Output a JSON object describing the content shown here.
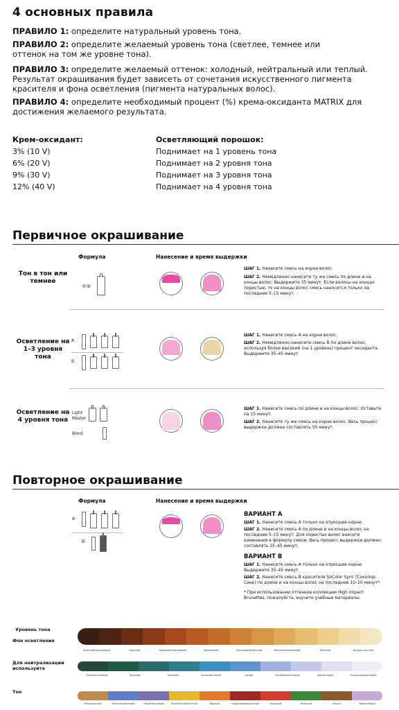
{
  "title": "4 основных правила",
  "rules": [
    {
      "label": "ПРАВИЛО 1:",
      "text": " определите натуральный уровень тона."
    },
    {
      "label": "ПРАВИЛО 2:",
      "text": " определите желаемый уровень тона (светлее, темнее или оттенок на том же уровне тона)."
    },
    {
      "label": "ПРАВИЛО 3:",
      "text": " определите желаемый оттенок: холодный, нейтральный или теплый. Результат окрашивания будет зависеть от сочетания искусственного пигмента красителя и фона осветления (пигмента натуральных волос)."
    },
    {
      "label": "ПРАВИЛО 4:",
      "text": " определите необходимый процент (%) крема-оксиданта MATRIX для достижения желаемого результата."
    }
  ],
  "oxidant": {
    "col1_head": "Крем-оксидант:",
    "col2_head": "Осветляющий порошок:",
    "rows": [
      {
        "a": "3% (10 V)",
        "b": "Поднимает на 1 уровень тона"
      },
      {
        "a": "6% (20 V)",
        "b": "Поднимает на 2 уровня тона"
      },
      {
        "a": "9% (30 V)",
        "b": "Поднимает на 3 уровня тона"
      },
      {
        "a": "12% (40 V)",
        "b": "Поднимает на 4 уровня тона"
      }
    ]
  },
  "primary": {
    "title": "Первичное окрашивание",
    "col_formula": "Формула",
    "col_apply": "Нанесение и время выдержки",
    "rows": [
      {
        "label": "Тон в тон или темнее",
        "steps": [
          {
            "b": "ШАГ 1.",
            "t": " Нанесите смесь на корни волос."
          },
          {
            "b": "ШАГ 2.",
            "t": " Немедленно нанесите ту же смесь по длине и на концы волос. Выдержите 35 минут. Если волосы на концах пористые, то на концы волос смесь наносится только на последние 5–15 минут."
          }
        ]
      },
      {
        "label": "Осветление на 1–3 уровня тона",
        "steps": [
          {
            "b": "ШАГ 1.",
            "t": " Нанесите смесь А на корни волос."
          },
          {
            "b": "ШАГ 2.",
            "t": " Немедленно нанесите смесь В по длине волос, используя более высокий (на 1 уровень) процент оксиданта. Выдержите 35–45 минут."
          }
        ]
      },
      {
        "label": "Осветление на 4 уровня тона",
        "steps": [
          {
            "b": "ШАГ 1.",
            "t": " Нанесите смесь по длине и на концы волос. Оставьте на 15 минут."
          },
          {
            "b": "ШАГ 2.",
            "t": " Нанесите ту же смесь на корни волос. Весь процесс выдержки должен составлять 50 минут."
          }
        ]
      }
    ]
  },
  "repeat": {
    "title": "Повторное окрашивание",
    "col_formula": "Формула",
    "col_apply": "Нанесение и время выдержки",
    "variant_a": "ВАРИАНТ А",
    "steps_a": [
      {
        "b": "ШАГ 1.",
        "t": " Нанесите смесь А только на отросшие корни."
      },
      {
        "b": "ШАГ 2.",
        "t": " Нанесите смесь А по длине и на концы волос на последние 5–15 минут. Для пористых волос внесите изменения в формулу смеси. Весь процесс выдержки должен составлять 35–45 минут."
      }
    ],
    "variant_b": "ВАРИАНТ В",
    "steps_b": [
      {
        "b": "ШАГ 1.",
        "t": " Нанесите смесь А только на отросшие корни. Выдержите 35–45 минут."
      },
      {
        "b": "ШАГ 2.",
        "t": " Нанесите смесь В красителя SoColor Sync (Соколор Синк) по длине и на концы волос на последние 10–20 минут*."
      }
    ],
    "note": "* При использовании оттенков коллекции High Impact Brunettes, пожалуйста, изучите учебные материалы."
  },
  "scales": {
    "level_label": "Уровень тона",
    "bg_label": "Фон осветления",
    "neut_label": "Для нейтрализации используйте",
    "tone_label": "Тон",
    "bg_names": [
      "Красный/Оранжевый",
      "Красный",
      "Красный/Оранжевый",
      "Оранжевый",
      "Оранжевый/Желтый",
      "Желтый/Оранжевый",
      "Желтый",
      "Бледно-желтый"
    ],
    "neut_names": [
      "Темный зеленый",
      "Зеленый",
      "Зеленый",
      "Зеленый/Синий",
      "Синий",
      "Синий/Фиолетовый",
      "Фиолетовый",
      "Бледно-фиолетовый"
    ],
    "tone_names": [
      "Натуральный",
      "Пепельный/синий",
      "Перламутровый",
      "Золотистый/желтый",
      "Медный",
      "Коричневый/красный",
      "Красный",
      "Зеленый",
      "Мокка",
      "Фиолетовый"
    ],
    "colors": {
      "bg": [
        "#3a1f12",
        "#4d2414",
        "#6b2d14",
        "#8a3a16",
        "#a5481b",
        "#b85a22",
        "#c46d2a",
        "#cf8136",
        "#d79646",
        "#dfaa5a",
        "#e6bd70",
        "#ecce8a",
        "#f0dca8",
        "#f4e8c4"
      ],
      "neut": [
        "#234a3b",
        "#1f5a48",
        "#2a6a6a",
        "#2f7f8f",
        "#3e8fbf",
        "#5f93d0",
        "#9fb1df",
        "#c3c8e8",
        "#dfe0ef",
        "#eceef5"
      ],
      "tone": [
        "#c08a4a",
        "#5e7fc6",
        "#7a6fb0",
        "#e8b92a",
        "#e07a2a",
        "#9a2a22",
        "#d63a2a",
        "#3a8a3a",
        "#8a5a2a",
        "#c7a9d9"
      ]
    }
  }
}
